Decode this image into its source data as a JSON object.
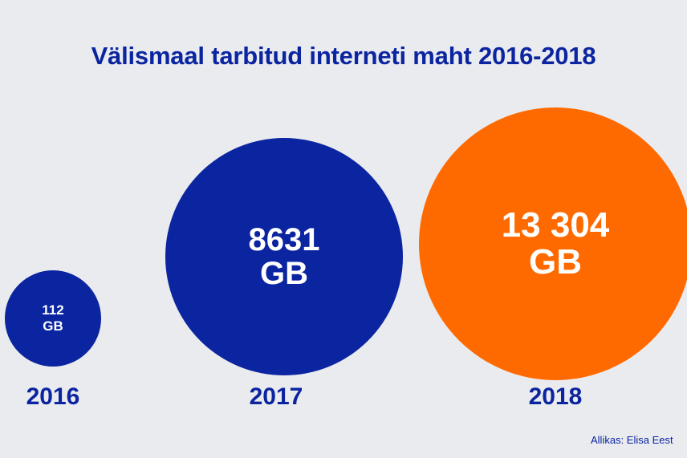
{
  "chart_data": {
    "type": "bubble",
    "title": "Välismaal tarbitud interneti maht 2016-2018",
    "categories": [
      "2016",
      "2017",
      "2018"
    ],
    "values": [
      112,
      8631,
      13304
    ],
    "unit": "GB",
    "labels": [
      {
        "value": "112",
        "unit": "GB"
      },
      {
        "value": "8631",
        "unit": "GB"
      },
      {
        "value": "13 304",
        "unit": "GB"
      }
    ],
    "colors": [
      "#0b24a0",
      "#0b24a0",
      "#ff6a00"
    ],
    "source": "Allikas: Elisa Eest"
  }
}
